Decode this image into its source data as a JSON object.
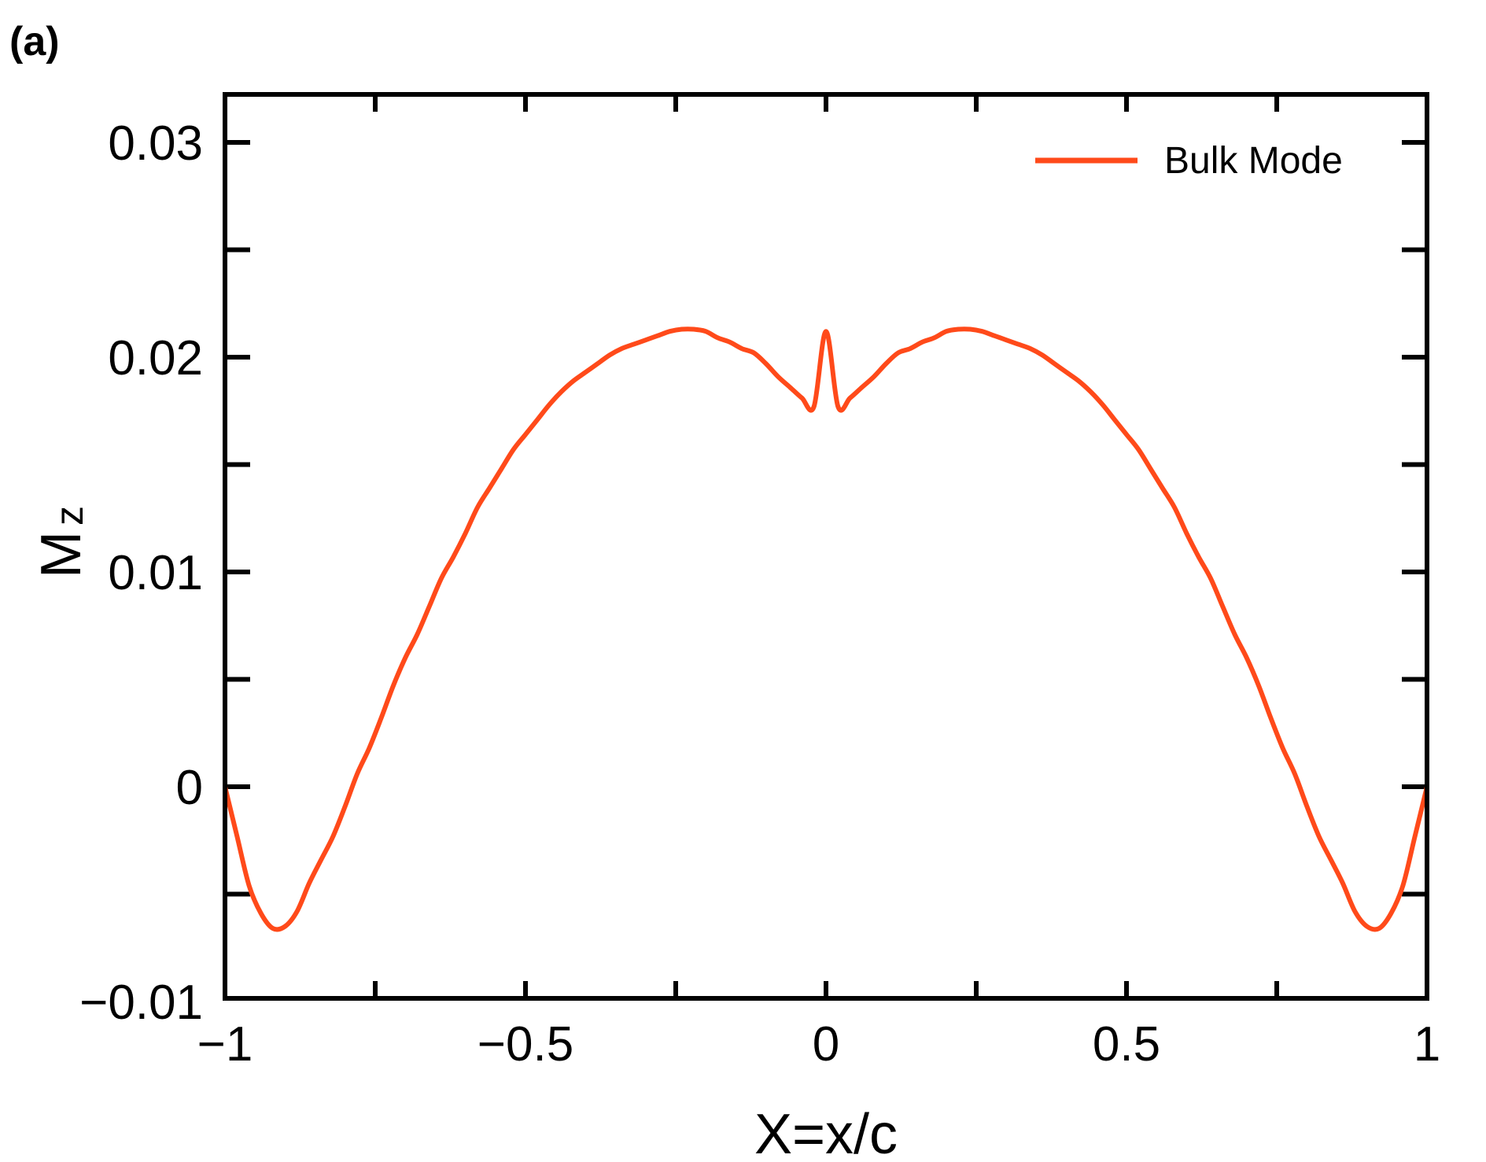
{
  "panel_label": "(a)",
  "chart_data": {
    "type": "line",
    "title": "",
    "xlabel": "X=x/c",
    "ylabel_main": "M",
    "ylabel_sub": "z",
    "xlim": [
      -1,
      1
    ],
    "ylim": [
      -0.01,
      0.032
    ],
    "xticks": [
      -1,
      -0.5,
      0,
      0.5,
      1
    ],
    "xtick_labels": [
      "−1",
      "−0.5",
      "0",
      "0.5",
      "1"
    ],
    "yticks": [
      -0.01,
      0,
      0.01,
      0.02,
      0.03
    ],
    "ytick_labels": [
      "−0.01",
      "0",
      "0.01",
      "0.02",
      "0.03"
    ],
    "grid": false,
    "legend_position": "top-right",
    "series": [
      {
        "name": "Bulk Mode",
        "color": "#ff4a1a",
        "x": [
          -1.0,
          -0.98,
          -0.96,
          -0.94,
          -0.92,
          -0.9,
          -0.88,
          -0.86,
          -0.84,
          -0.82,
          -0.8,
          -0.78,
          -0.76,
          -0.74,
          -0.72,
          -0.7,
          -0.68,
          -0.66,
          -0.64,
          -0.62,
          -0.6,
          -0.58,
          -0.56,
          -0.54,
          -0.52,
          -0.5,
          -0.48,
          -0.46,
          -0.44,
          -0.42,
          -0.4,
          -0.38,
          -0.36,
          -0.34,
          -0.32,
          -0.3,
          -0.28,
          -0.26,
          -0.24,
          -0.22,
          -0.2,
          -0.18,
          -0.16,
          -0.14,
          -0.12,
          -0.1,
          -0.08,
          -0.06,
          -0.04,
          -0.02,
          0.0,
          0.02,
          0.04,
          0.06,
          0.08,
          0.1,
          0.12,
          0.14,
          0.16,
          0.18,
          0.2,
          0.22,
          0.24,
          0.26,
          0.28,
          0.3,
          0.32,
          0.34,
          0.36,
          0.38,
          0.4,
          0.42,
          0.44,
          0.46,
          0.48,
          0.5,
          0.52,
          0.54,
          0.56,
          0.58,
          0.6,
          0.62,
          0.64,
          0.66,
          0.68,
          0.7,
          0.72,
          0.74,
          0.76,
          0.78,
          0.8,
          0.82,
          0.84,
          0.86,
          0.88,
          0.9,
          0.92,
          0.94,
          0.96,
          0.98,
          1.0
        ],
        "y": [
          0.0,
          -0.0023,
          -0.0046,
          -0.0059,
          -0.0066,
          -0.0065,
          -0.0058,
          -0.0045,
          -0.0034,
          -0.0023,
          -0.0009,
          0.0006,
          0.0018,
          0.0032,
          0.0047,
          0.006,
          0.0071,
          0.0084,
          0.0097,
          0.0107,
          0.0118,
          0.013,
          0.0139,
          0.0148,
          0.0157,
          0.0164,
          0.0171,
          0.0178,
          0.0184,
          0.0189,
          0.0193,
          0.0197,
          0.0201,
          0.0204,
          0.0206,
          0.0208,
          0.021,
          0.0212,
          0.0213,
          0.0213,
          0.0212,
          0.0209,
          0.0207,
          0.0204,
          0.0202,
          0.0197,
          0.0191,
          0.0186,
          0.0181,
          0.0177,
          0.0212,
          0.0177,
          0.0181,
          0.0186,
          0.0191,
          0.0197,
          0.0202,
          0.0204,
          0.0207,
          0.0209,
          0.0212,
          0.0213,
          0.0213,
          0.0212,
          0.021,
          0.0208,
          0.0206,
          0.0204,
          0.0201,
          0.0197,
          0.0193,
          0.0189,
          0.0184,
          0.0178,
          0.0171,
          0.0164,
          0.0157,
          0.0148,
          0.0139,
          0.013,
          0.0118,
          0.0107,
          0.0097,
          0.0084,
          0.0071,
          0.006,
          0.0047,
          0.0032,
          0.0018,
          0.0006,
          -0.0009,
          -0.0023,
          -0.0034,
          -0.0045,
          -0.0058,
          -0.0065,
          -0.0066,
          -0.0059,
          -0.0046,
          -0.0023,
          0.0
        ]
      }
    ]
  }
}
